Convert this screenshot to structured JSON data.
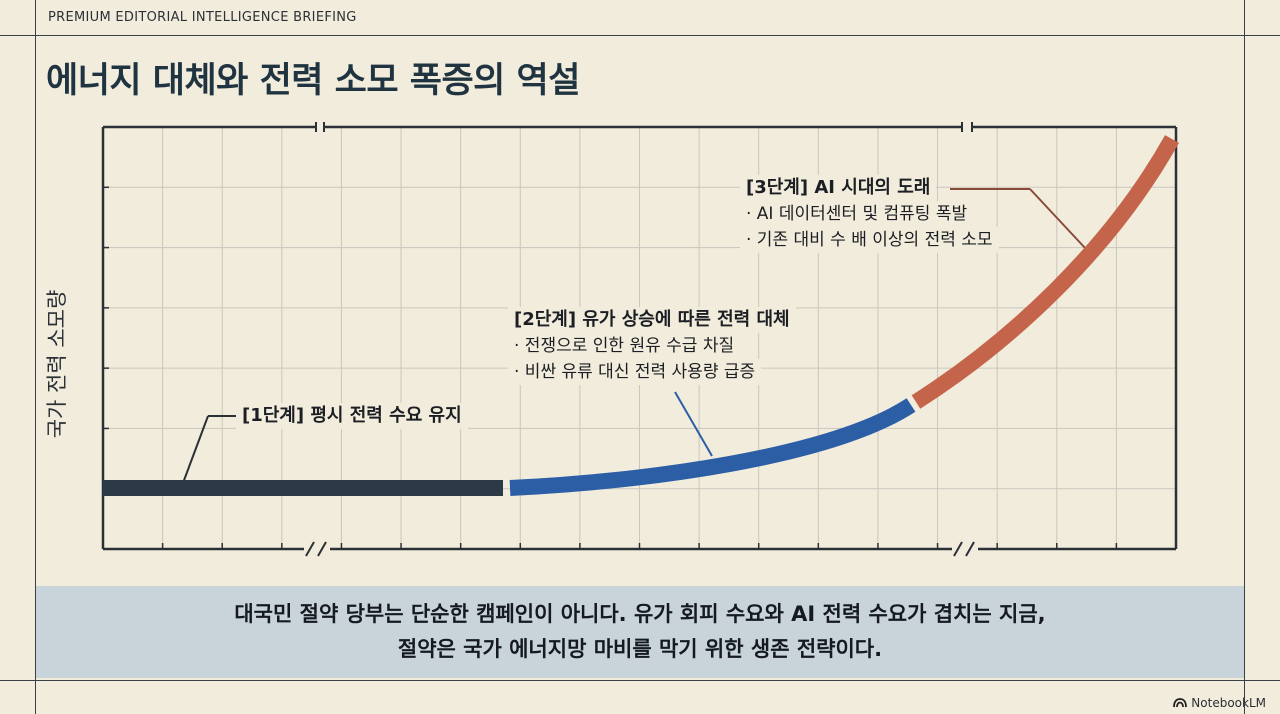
{
  "header": {
    "kicker": "PREMIUM EDITORIAL INTELLIGENCE BRIEFING",
    "title": "에너지 대체와 전력 소모 폭증의 역설"
  },
  "diagram": {
    "y_axis_label": "국가 전력 소모량",
    "stages": [
      {
        "title": "[1단계] 평시 전력 수요 유지",
        "bullets": [],
        "color": "#2c3a47"
      },
      {
        "title": "[2단계] 유가 상승에 따른 전력 대체",
        "bullets": [
          "· 전쟁으로 인한 원유 수급 차질",
          "· 비싼 유류 대신 전력 사용량 급증"
        ],
        "color": "#2c5ea6"
      },
      {
        "title": "[3단계] AI 시대의 도래",
        "bullets": [
          "· AI 데이터센터 및 컴퓨팅 폭발",
          "· 기존 대비 수 배 이상의 전력 소모"
        ],
        "color": "#c4644a"
      }
    ]
  },
  "banner": {
    "line1": "대국민 절약 당부는 단순한 캠페인이 아니다. 유가 회피 수요와 AI 전력 수요가 겹치는 지금,",
    "line2": "절약은 국가 에너지망 마비를 막기 위한 생존 전략이다."
  },
  "brand": {
    "name": "NotebookLM",
    "icon": "notebooklm-logo-icon"
  }
}
